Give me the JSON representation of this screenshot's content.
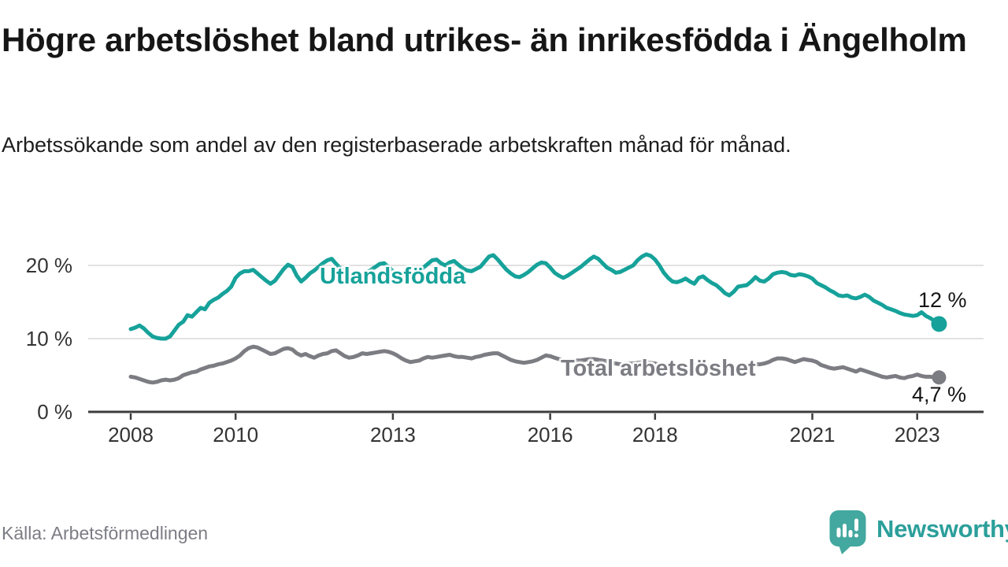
{
  "header": {
    "title": "Högre arbetslöshet bland utrikes- än inrikesfödda i Ängelholm",
    "subtitle": "Arbetssökande som andel av den registerbaserade arbetskraften månad för månad."
  },
  "source": {
    "label": "Källa: Arbetsförmedlingen"
  },
  "branding": {
    "name": "Newsworthy",
    "icon": "speech-bubble-bar-chart",
    "icon_color": "#43a89f",
    "text_color": "#2b9f9b"
  },
  "chart_data": {
    "type": "line",
    "title": "Högre arbetslöshet bland utrikes- än inrikesfödda i Ängelholm",
    "unit": "%",
    "grid": "horizontal-only",
    "ylim": [
      0,
      23
    ],
    "x_start_year": 2008,
    "x_step_months": 1,
    "x_end": "2023-06",
    "x_ticks": [
      {
        "year": 2008,
        "label": "2008"
      },
      {
        "year": 2010,
        "label": "2010"
      },
      {
        "year": 2013,
        "label": "2013"
      },
      {
        "year": 2016,
        "label": "2016"
      },
      {
        "year": 2018,
        "label": "2018"
      },
      {
        "year": 2021,
        "label": "2021"
      },
      {
        "year": 2023,
        "label": "2023"
      }
    ],
    "y_ticks": [
      {
        "value": 20,
        "label": "20 %"
      },
      {
        "value": 10,
        "label": "10 %"
      },
      {
        "value": 0,
        "label": "0 %"
      }
    ],
    "axis_color": "#3d3d3d",
    "grid_color": "#d9d9d9",
    "series": [
      {
        "name": "Utlandsfödda",
        "color": "#16a29a",
        "end_label": "12 %",
        "end_value": 12,
        "values": [
          11.3,
          11.5,
          11.8,
          11.4,
          10.8,
          10.3,
          10.1,
          10,
          10,
          10.3,
          11.1,
          11.9,
          12.3,
          13.2,
          13,
          13.6,
          14.2,
          14,
          14.9,
          15.3,
          15.6,
          16.1,
          16.5,
          17.1,
          18.3,
          18.9,
          19.2,
          19.2,
          19.4,
          18.9,
          18.4,
          17.9,
          17.5,
          17.9,
          18.7,
          19.5,
          20.1,
          19.8,
          18.6,
          17.8,
          18.3,
          18.9,
          19.3,
          19.8,
          20.3,
          20.7,
          20.9,
          20.2,
          19.6,
          19,
          18.4,
          18,
          18.3,
          18.6,
          19,
          19.4,
          19.8,
          20.2,
          20.3,
          19.8,
          19.2,
          18.7,
          18.3,
          18.1,
          18.4,
          18.8,
          19.2,
          19.7,
          20.2,
          20.7,
          20.8,
          20.3,
          20,
          20.4,
          20.6,
          20.1,
          19.6,
          19.3,
          19.2,
          19.5,
          19.8,
          20.5,
          21.2,
          21.4,
          20.8,
          20.1,
          19.4,
          18.9,
          18.5,
          18.4,
          18.7,
          19.1,
          19.6,
          20.1,
          20.4,
          20.3,
          19.7,
          19,
          18.6,
          18.3,
          18.6,
          19,
          19.4,
          19.8,
          20.3,
          20.8,
          21.2,
          20.9,
          20.3,
          19.7,
          19.4,
          19,
          19.1,
          19.4,
          19.7,
          20,
          20.7,
          21.2,
          21.5,
          21.3,
          20.8,
          20,
          19,
          18.3,
          17.8,
          17.7,
          17.9,
          18.2,
          17.8,
          17.5,
          18.3,
          18.5,
          18,
          17.6,
          17.3,
          16.8,
          16.2,
          15.9,
          16.4,
          17.1,
          17.2,
          17.3,
          17.8,
          18.4,
          17.9,
          17.8,
          18.2,
          18.8,
          19,
          19.1,
          19,
          18.7,
          18.6,
          18.8,
          18.7,
          18.5,
          18.2,
          17.6,
          17.3,
          17,
          16.6,
          16.3,
          15.9,
          15.8,
          15.9,
          15.6,
          15.5,
          15.7,
          16,
          15.7,
          15.2,
          14.9,
          14.6,
          14.2,
          14,
          13.8,
          13.5,
          13.3,
          13.2,
          13.1,
          13.2,
          13.6,
          13.1,
          12.8,
          12.4,
          12
        ]
      },
      {
        "name": "Total arbetslöshet",
        "color": "#7c7c83",
        "end_label": "4,7 %",
        "end_value": 4.7,
        "values": [
          4.8,
          4.7,
          4.5,
          4.3,
          4.1,
          4,
          4.1,
          4.3,
          4.4,
          4.3,
          4.4,
          4.6,
          5,
          5.2,
          5.4,
          5.5,
          5.8,
          6,
          6.2,
          6.3,
          6.5,
          6.6,
          6.8,
          7,
          7.3,
          7.7,
          8.3,
          8.7,
          8.9,
          8.8,
          8.5,
          8.2,
          7.9,
          8,
          8.3,
          8.6,
          8.7,
          8.5,
          8,
          7.7,
          7.9,
          7.6,
          7.4,
          7.7,
          7.9,
          8,
          8.3,
          8.4,
          8,
          7.6,
          7.4,
          7.5,
          7.7,
          8,
          7.9,
          8,
          8.1,
          8.2,
          8.3,
          8.2,
          8,
          7.7,
          7.3,
          7,
          6.8,
          6.9,
          7,
          7.3,
          7.5,
          7.4,
          7.5,
          7.6,
          7.7,
          7.8,
          7.6,
          7.5,
          7.5,
          7.4,
          7.3,
          7.5,
          7.6,
          7.8,
          7.9,
          8,
          8,
          7.7,
          7.4,
          7.1,
          6.9,
          6.8,
          6.7,
          6.8,
          6.9,
          7.1,
          7.4,
          7.7,
          7.6,
          7.4,
          7.2,
          7,
          6.9,
          6.9,
          7,
          7,
          7.1,
          7.2,
          7.2,
          7.1,
          7,
          6.9,
          6.7,
          6.6,
          6.5,
          6.5,
          6.6,
          6.6,
          6.7,
          6.8,
          6.8,
          6.7,
          6.6,
          6.4,
          6.3,
          6.2,
          6.1,
          6.1,
          6.2,
          6.2,
          6.3,
          6.3,
          6.4,
          6.4,
          6.3,
          6.1,
          6,
          5.9,
          5.9,
          6,
          6.1,
          6.2,
          6.2,
          6.3,
          6.4,
          6.5,
          6.5,
          6.6,
          6.8,
          7.1,
          7.3,
          7.3,
          7.2,
          7,
          6.8,
          7,
          7.2,
          7.1,
          7,
          6.8,
          6.4,
          6.2,
          6,
          5.9,
          6,
          6.1,
          5.9,
          5.7,
          5.5,
          5.8,
          5.6,
          5.4,
          5.2,
          5,
          4.8,
          4.7,
          4.8,
          4.9,
          4.7,
          4.6,
          4.8,
          4.9,
          5.1,
          4.9,
          4.8,
          4.8,
          4.7,
          4.7
        ]
      }
    ]
  }
}
